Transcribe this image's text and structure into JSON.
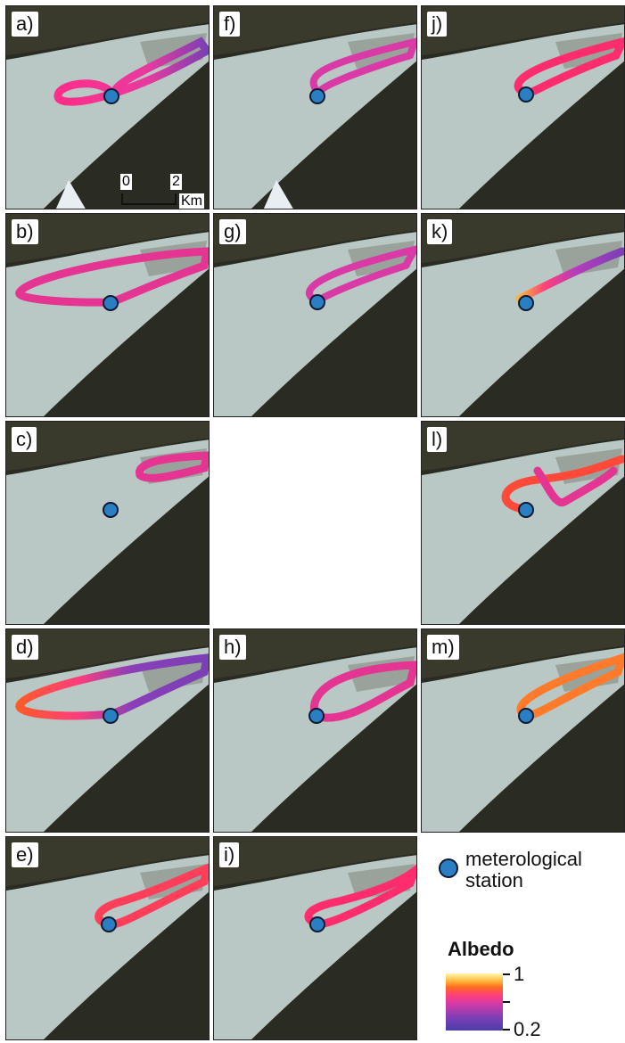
{
  "panels": [
    {
      "label": "a)"
    },
    {
      "label": "f)"
    },
    {
      "label": "j)"
    },
    {
      "label": "b)"
    },
    {
      "label": "g)"
    },
    {
      "label": "k)"
    },
    {
      "label": "c)"
    },
    {
      "label": ""
    },
    {
      "label": "l)"
    },
    {
      "label": "d)"
    },
    {
      "label": "h)"
    },
    {
      "label": "m)"
    },
    {
      "label": "e)"
    },
    {
      "label": "i)"
    }
  ],
  "scale_bar": {
    "start": "0",
    "end": "2",
    "unit": "Km"
  },
  "legend": {
    "station_label": "meterological station",
    "albedo_title": "Albedo",
    "colorbar_max": "1",
    "colorbar_min": "0.2",
    "colors": {
      "station": "#2a7fc2",
      "low": "#4b3ea8",
      "mid": "#ff3f7a",
      "high": "#fff7a8"
    }
  }
}
